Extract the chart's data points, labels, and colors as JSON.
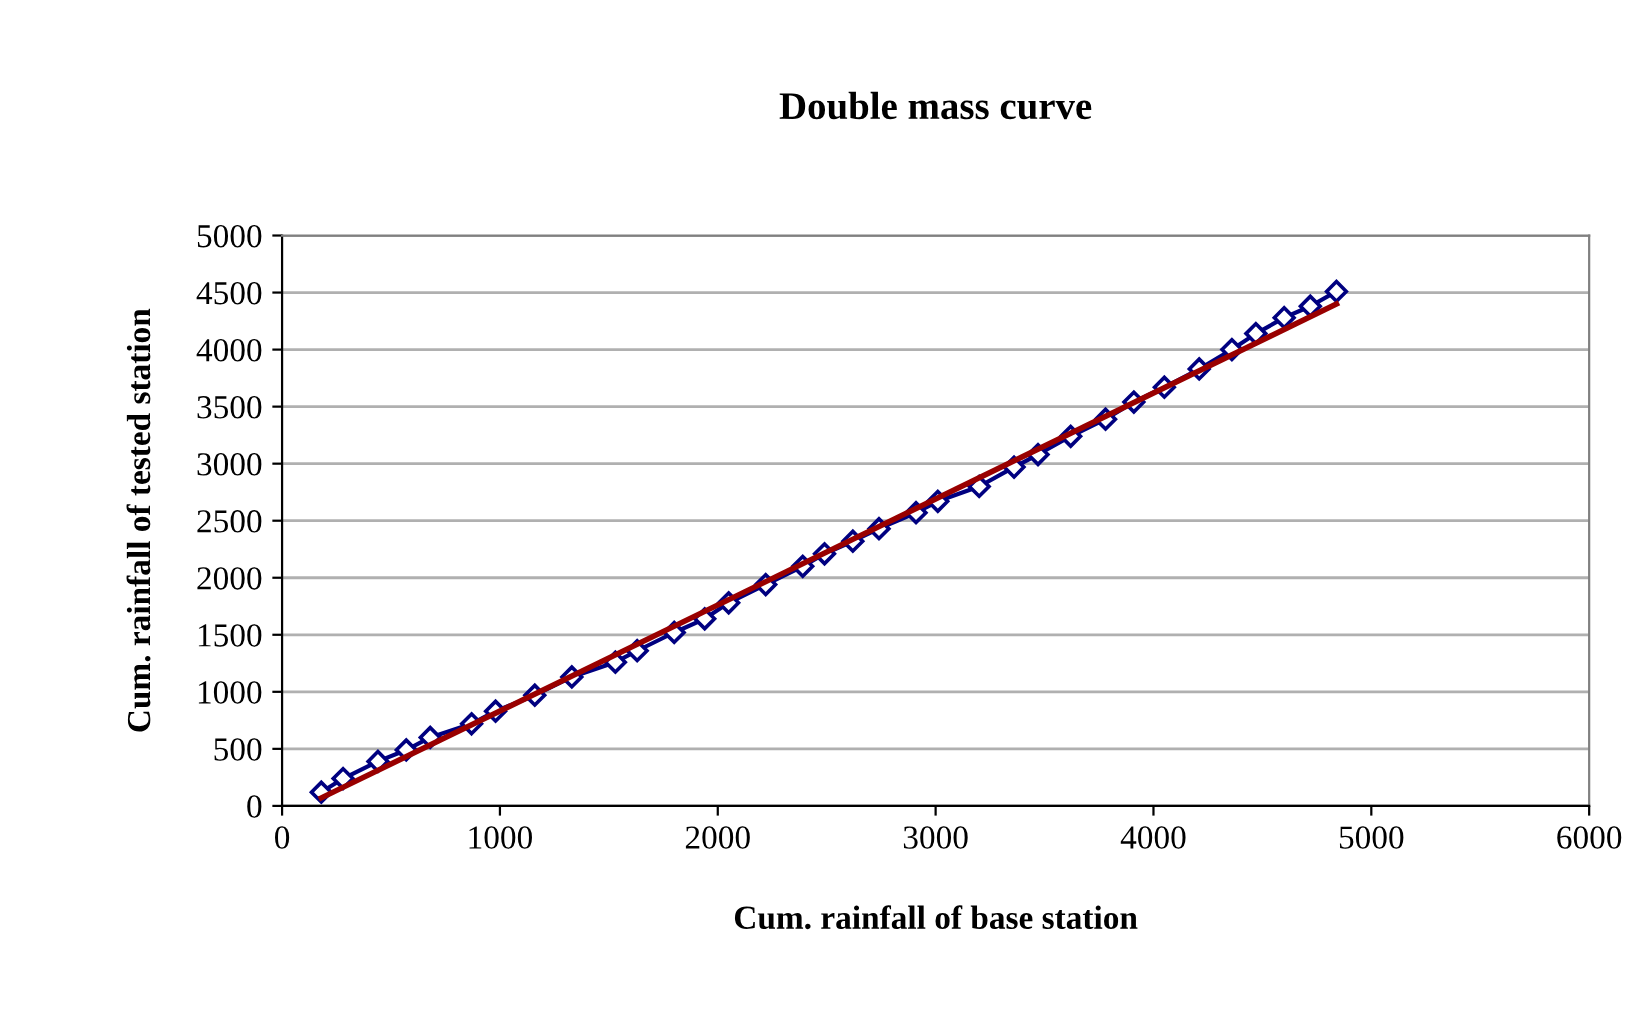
{
  "chart_data": {
    "type": "line",
    "title": "Double mass curve",
    "xlabel": "Cum. rainfall of base station",
    "ylabel": "Cum. rainfall of tested station",
    "xlim": [
      0,
      6000
    ],
    "xticks": [
      0,
      1000,
      2000,
      3000,
      4000,
      5000,
      6000
    ],
    "ylim": [
      0,
      5000
    ],
    "yticks": [
      0,
      500,
      1000,
      1500,
      2000,
      2500,
      3000,
      3500,
      4000,
      4500,
      5000
    ],
    "grid": "y",
    "legend": false,
    "series": [
      {
        "color": "#000080",
        "marker": "diamond",
        "x": [
          180,
          280,
          440,
          570,
          680,
          870,
          980,
          1160,
          1330,
          1530,
          1630,
          1800,
          1940,
          2050,
          2220,
          2390,
          2490,
          2620,
          2740,
          2910,
          3010,
          3200,
          3360,
          3470,
          3620,
          3780,
          3910,
          4050,
          4210,
          4360,
          4470,
          4600,
          4720,
          4840
        ],
        "values": [
          120,
          240,
          390,
          490,
          600,
          720,
          830,
          970,
          1130,
          1260,
          1360,
          1520,
          1640,
          1780,
          1940,
          2100,
          2210,
          2320,
          2430,
          2570,
          2670,
          2800,
          2970,
          3080,
          3240,
          3390,
          3540,
          3670,
          3830,
          4000,
          4140,
          4280,
          4380,
          4510
        ]
      },
      {
        "color": "#990000",
        "marker": "none",
        "x": [
          180,
          4840
        ],
        "values": [
          70,
          4400
        ]
      }
    ]
  }
}
